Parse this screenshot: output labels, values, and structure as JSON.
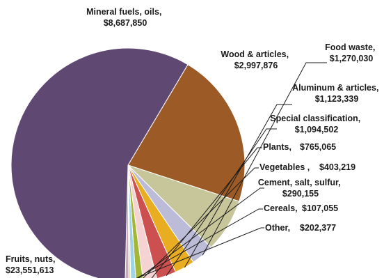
{
  "chart_data": {
    "type": "pie",
    "slices": [
      {
        "name": "Fruits, nuts,",
        "value_label": "$23,551,613",
        "value": 23551613,
        "color": "#5f4872"
      },
      {
        "name": "Mineral fuels, oils,",
        "value_label": "$8,687,850",
        "value": 8687850,
        "color": "#9c5b26"
      },
      {
        "name": "Wood & articles,",
        "value_label": "$2,997,876",
        "value": 2997876,
        "color": "#c6c69a"
      },
      {
        "name": "Food waste,",
        "value_label": "$1,270,030",
        "value": 1270030,
        "color": "#bcbcd8"
      },
      {
        "name": "Aluminum & articles,",
        "value_label": "$1,123,339",
        "value": 1123339,
        "color": "#e9ad21"
      },
      {
        "name": "Special classification,",
        "value_label": "$1,094,502",
        "value": 1094502,
        "color": "#cc5050"
      },
      {
        "name": "Plants,",
        "value_label": "$765,065",
        "value": 765065,
        "color": "#f5d3d3"
      },
      {
        "name": "Vegetables ,",
        "value_label": "$403,219",
        "value": 403219,
        "color": "#a3b635"
      },
      {
        "name": "Cement, salt, sulfur,",
        "value_label": "$290,155",
        "value": 290155,
        "color": "#9fd4e6"
      },
      {
        "name": "Cereals,",
        "value_label": "$107,055",
        "value": 107055,
        "color": "#e4d4ae"
      },
      {
        "name": "Other,",
        "value_label": "$202,377",
        "value": 202377,
        "color": "#c8aab8"
      }
    ]
  }
}
